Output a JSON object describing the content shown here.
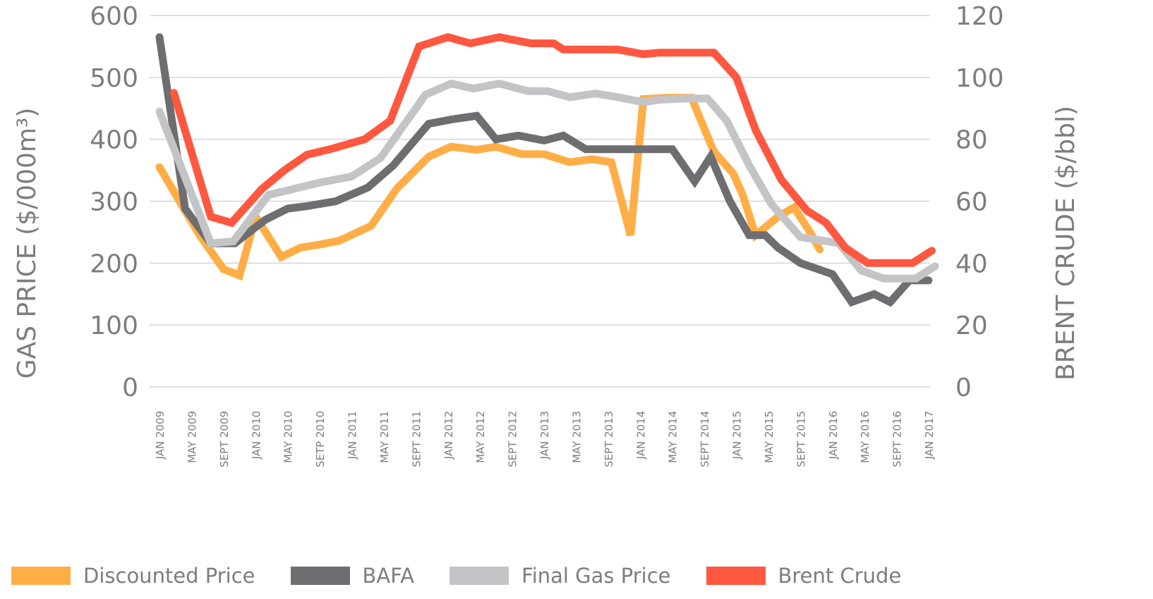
{
  "chart_data": {
    "type": "line",
    "title": "",
    "ylabel": "GAS PRICE ($/000m³)",
    "y2label": "BRENT CRUDE ($/bbl)",
    "ylim": [
      0,
      600
    ],
    "y2lim": [
      0,
      120
    ],
    "yticks": [
      "0",
      "100",
      "200",
      "300",
      "400",
      "500",
      "600"
    ],
    "y2ticks": [
      "0",
      "20",
      "40",
      "60",
      "80",
      "100",
      "120"
    ],
    "grid": true,
    "legend_position": "bottom",
    "x_tick_labels": [
      "JAN 2009",
      "MAY 2009",
      "SEPT 2009",
      "JAN 2010",
      "MAY 2010",
      "SETP 2010",
      "JAN 2011",
      "MAY 2011",
      "SEPT 2011",
      "JAN 2012",
      "MAY 2012",
      "SEPT 2012",
      "JAN 2013",
      "MAY 2013",
      "SEPT 2013",
      "JAN 2014",
      "MAY 2014",
      "SEPT 2014",
      "JAN 2015",
      "MAY 2015",
      "SEPT 2015",
      "JAN 2016",
      "MAY 2016",
      "SEPT 2016",
      "JAN 2017"
    ],
    "x_note": "x values are tick indices (0 = JAN 2009, 1 tick = 4 months)",
    "series": [
      {
        "name": "Discounted Price",
        "color": "#FFAE47",
        "axis": "left",
        "x": [
          0,
          1.25,
          2,
          2.5,
          3,
          3.8,
          4.4,
          5,
          5.6,
          6.6,
          7.4,
          8.4,
          9.1,
          9.9,
          10.5,
          11.3,
          12,
          12.8,
          13.5,
          14.1,
          14.7,
          15.1,
          15.8,
          16.6,
          17.3,
          17.9,
          18.2,
          18.6,
          19.3,
          19.8,
          20.3,
          20.6
        ],
        "y": [
          355,
          245,
          190,
          180,
          275,
          210,
          225,
          230,
          236,
          260,
          320,
          372,
          388,
          383,
          388,
          376,
          376,
          363,
          368,
          363,
          245,
          465,
          467,
          467,
          380,
          345,
          310,
          245,
          275,
          290,
          250,
          222
        ]
      },
      {
        "name": "BAFA",
        "color": "#6D6E70",
        "axis": "left",
        "x": [
          0,
          0.8,
          1.6,
          2.35,
          3.3,
          4,
          4.6,
          5.5,
          6.5,
          7.3,
          8.4,
          9.1,
          9.9,
          10.5,
          11.2,
          12,
          12.6,
          13.3,
          14,
          15,
          16,
          16.7,
          17.2,
          17.8,
          18.4,
          18.9,
          19.3,
          20,
          21,
          21.6,
          22.3,
          22.8,
          23.4,
          24
        ],
        "y": [
          565,
          288,
          232,
          232,
          270,
          288,
          292,
          300,
          322,
          358,
          425,
          432,
          438,
          400,
          406,
          398,
          406,
          384,
          384,
          384,
          384,
          332,
          372,
          300,
          245,
          245,
          225,
          200,
          182,
          137,
          150,
          137,
          172,
          172
        ]
      },
      {
        "name": "Final Gas Price",
        "color": "#C3C4C6",
        "axis": "left",
        "x": [
          0,
          1.6,
          2.3,
          3.4,
          4.2,
          5,
          6,
          6.9,
          8.3,
          9.1,
          9.8,
          10.6,
          11.5,
          12.1,
          12.8,
          13.6,
          14.3,
          15.1,
          15.6,
          16.5,
          17.1,
          17.7,
          18.4,
          19.1,
          20,
          20.5,
          21.2,
          21.9,
          22.6,
          23.6,
          24.2
        ],
        "y": [
          445,
          232,
          235,
          310,
          320,
          330,
          340,
          370,
          472,
          490,
          482,
          490,
          478,
          478,
          468,
          474,
          468,
          460,
          464,
          466,
          466,
          430,
          358,
          295,
          242,
          238,
          232,
          188,
          175,
          175,
          195
        ]
      },
      {
        "name": "Brent Crude",
        "color": "#FF5740",
        "axis": "right",
        "x": [
          0.45,
          1.6,
          2.25,
          3.2,
          3.9,
          4.6,
          5.4,
          6.4,
          7.2,
          8.1,
          9,
          9.7,
          10.6,
          11.6,
          12.3,
          12.6,
          13.3,
          14.3,
          15.1,
          15.6,
          16.6,
          17.3,
          18,
          18.6,
          19.4,
          20.2,
          20.8,
          21.4,
          22.1,
          22.8,
          23.5,
          24.1
        ],
        "y": [
          95,
          55,
          53,
          64,
          70,
          75,
          77,
          80,
          86,
          110,
          113,
          111,
          113,
          111,
          111,
          109,
          109,
          109,
          107.5,
          108,
          108,
          108,
          100,
          83,
          67,
          57,
          53,
          45,
          40,
          40,
          40,
          44
        ]
      }
    ]
  },
  "legend": [
    {
      "label": "Discounted Price",
      "color": "#FFAE47"
    },
    {
      "label": "BAFA",
      "color": "#6D6E70"
    },
    {
      "label": "Final Gas Price",
      "color": "#C3C4C6"
    },
    {
      "label": "Brent Crude",
      "color": "#FF5740"
    }
  ]
}
